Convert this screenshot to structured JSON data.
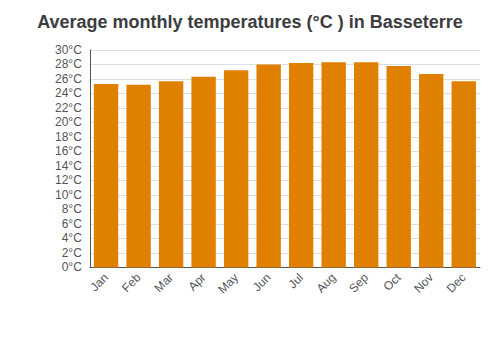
{
  "chart_data": {
    "type": "bar",
    "title": "Average monthly temperatures (°C ) in Basseterre",
    "categories": [
      "Jan",
      "Feb",
      "Mar",
      "Apr",
      "May",
      "Jun",
      "Jul",
      "Aug",
      "Sep",
      "Oct",
      "Nov",
      "Dec"
    ],
    "values": [
      25.3,
      25.2,
      25.7,
      26.3,
      27.2,
      28.0,
      28.2,
      28.3,
      28.3,
      27.8,
      26.7,
      25.7
    ],
    "color": "#E08000",
    "ylim": [
      0,
      30
    ],
    "yticks": [
      {
        "value": 0,
        "label": "0°C"
      },
      {
        "value": 2,
        "label": "2°C"
      },
      {
        "value": 4,
        "label": "4°C"
      },
      {
        "value": 6,
        "label": "6°C"
      },
      {
        "value": 8,
        "label": "8°C"
      },
      {
        "value": 10,
        "label": "10°C"
      },
      {
        "value": 12,
        "label": "12°C"
      },
      {
        "value": 14,
        "label": "14°C"
      },
      {
        "value": 16,
        "label": "16°C"
      },
      {
        "value": 18,
        "label": "18°C"
      },
      {
        "value": 20,
        "label": "20°C"
      },
      {
        "value": 22,
        "label": "22°C"
      },
      {
        "value": 24,
        "label": "24°C"
      },
      {
        "value": 26,
        "label": "26°C"
      },
      {
        "value": 28,
        "label": "28°C"
      },
      {
        "value": 30,
        "label": "30°C"
      }
    ],
    "grid": true
  }
}
